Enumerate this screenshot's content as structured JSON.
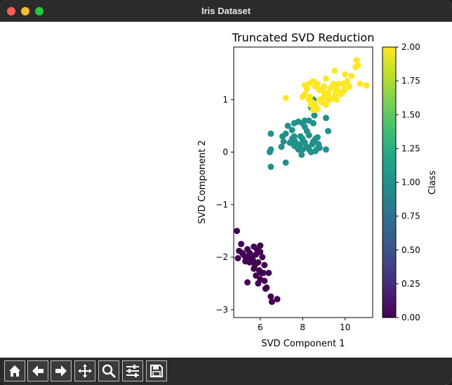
{
  "window": {
    "title": "Iris Dataset"
  },
  "toolbar": {
    "buttons": [
      {
        "name": "home-button",
        "icon": "home-icon"
      },
      {
        "name": "back-button",
        "icon": "arrow-left-icon"
      },
      {
        "name": "forward-button",
        "icon": "arrow-right-icon"
      },
      {
        "name": "pan-button",
        "icon": "move-icon"
      },
      {
        "name": "zoom-button",
        "icon": "magnifier-icon"
      },
      {
        "name": "configure-subplots-button",
        "icon": "sliders-icon"
      },
      {
        "name": "save-button",
        "icon": "save-icon"
      }
    ]
  },
  "chart_data": {
    "type": "scatter",
    "title": "Truncated SVD Reduction",
    "xlabel": "SVD Component 1",
    "ylabel": "SVD Component 2",
    "xlim": [
      4.75,
      11.3
    ],
    "ylim": [
      -3.15,
      2.0
    ],
    "xticks": [
      6,
      8,
      10
    ],
    "yticks": [
      -3,
      -2,
      -1,
      0,
      1
    ],
    "colorbar": {
      "label": "Class",
      "range": [
        0.0,
        2.0
      ],
      "ticks": [
        "0.00",
        "0.25",
        "0.50",
        "0.75",
        "1.00",
        "1.25",
        "1.50",
        "1.75",
        "2.00"
      ],
      "colormap": [
        "#440154",
        "#482475",
        "#414487",
        "#355f8d",
        "#2a788e",
        "#21918c",
        "#22a884",
        "#44bf70",
        "#7ad151",
        "#bddf26",
        "#fde725"
      ]
    },
    "series": [
      {
        "class": 0,
        "color": "#440154",
        "points": [
          [
            4.9,
            -1.5
          ],
          [
            5.1,
            -1.75
          ],
          [
            5.0,
            -1.88
          ],
          [
            5.2,
            -1.95
          ],
          [
            4.95,
            -2.02
          ],
          [
            5.4,
            -1.85
          ],
          [
            5.3,
            -2.0
          ],
          [
            5.5,
            -1.92
          ],
          [
            5.6,
            -2.05
          ],
          [
            5.7,
            -1.8
          ],
          [
            5.8,
            -1.95
          ],
          [
            5.9,
            -2.1
          ],
          [
            6.0,
            -1.9
          ],
          [
            5.75,
            -2.15
          ],
          [
            5.65,
            -2.05
          ],
          [
            5.5,
            -2.1
          ],
          [
            6.1,
            -2.0
          ],
          [
            6.2,
            -2.15
          ],
          [
            5.85,
            -1.85
          ],
          [
            6.0,
            -1.78
          ],
          [
            5.45,
            -2.0
          ],
          [
            5.95,
            -2.25
          ],
          [
            6.05,
            -2.3
          ],
          [
            5.8,
            -2.35
          ],
          [
            6.15,
            -2.3
          ],
          [
            5.7,
            -2.22
          ],
          [
            6.0,
            -2.42
          ],
          [
            6.2,
            -2.45
          ],
          [
            6.4,
            -2.3
          ],
          [
            5.9,
            -2.5
          ],
          [
            5.4,
            -2.48
          ],
          [
            6.3,
            -2.58
          ],
          [
            6.25,
            -2.6
          ],
          [
            6.5,
            -2.75
          ],
          [
            6.55,
            -2.85
          ],
          [
            6.8,
            -2.8
          ],
          [
            5.6,
            -2.02
          ],
          [
            5.3,
            -2.08
          ],
          [
            5.55,
            -1.96
          ],
          [
            5.15,
            -1.92
          ]
        ]
      },
      {
        "class": 1,
        "color": "#21918c",
        "points": [
          [
            6.5,
            0.35
          ],
          [
            6.45,
            0.0
          ],
          [
            6.5,
            0.05
          ],
          [
            6.5,
            -0.28
          ],
          [
            7.2,
            -0.2
          ],
          [
            7.0,
            0.1
          ],
          [
            7.1,
            0.2
          ],
          [
            7.05,
            0.3
          ],
          [
            7.2,
            0.35
          ],
          [
            7.3,
            0.5
          ],
          [
            7.5,
            0.42
          ],
          [
            7.6,
            0.3
          ],
          [
            7.65,
            0.2
          ],
          [
            7.4,
            0.18
          ],
          [
            7.7,
            0.1
          ],
          [
            7.8,
            0.05
          ],
          [
            7.9,
            0.15
          ],
          [
            7.6,
            0.55
          ],
          [
            7.8,
            0.58
          ],
          [
            8.0,
            0.55
          ],
          [
            8.1,
            0.48
          ],
          [
            8.2,
            0.4
          ],
          [
            8.3,
            0.32
          ],
          [
            8.0,
            0.25
          ],
          [
            8.1,
            0.18
          ],
          [
            8.2,
            0.1
          ],
          [
            8.3,
            0.05
          ],
          [
            8.4,
            0.0
          ],
          [
            8.45,
            0.15
          ],
          [
            8.5,
            0.2
          ],
          [
            8.6,
            0.25
          ],
          [
            8.7,
            0.28
          ],
          [
            8.75,
            0.15
          ],
          [
            8.8,
            0.08
          ],
          [
            8.65,
            0.05
          ],
          [
            8.5,
            0.55
          ],
          [
            8.55,
            0.7
          ],
          [
            8.4,
            0.85
          ],
          [
            8.5,
            1.0
          ],
          [
            9.1,
            0.65
          ],
          [
            9.2,
            0.4
          ],
          [
            9.1,
            0.05
          ],
          [
            7.9,
            0.3
          ],
          [
            8.0,
            0.05
          ],
          [
            7.95,
            -0.05
          ],
          [
            8.3,
            0.6
          ],
          [
            8.1,
            0.6
          ],
          [
            7.5,
            0.25
          ],
          [
            7.6,
            0.12
          ],
          [
            8.6,
            0.02
          ]
        ]
      },
      {
        "class": 2,
        "color": "#fde725",
        "points": [
          [
            7.2,
            1.03
          ],
          [
            8.1,
            1.27
          ],
          [
            8.1,
            1.1
          ],
          [
            8.2,
            1.2
          ],
          [
            8.0,
            1.05
          ],
          [
            8.3,
            1.0
          ],
          [
            8.4,
            0.9
          ],
          [
            8.5,
            0.8
          ],
          [
            8.45,
            0.95
          ],
          [
            8.6,
            0.9
          ],
          [
            8.7,
            0.82
          ],
          [
            8.8,
            1.0
          ],
          [
            9.0,
            1.05
          ],
          [
            9.1,
            0.9
          ],
          [
            9.2,
            1.1
          ],
          [
            9.3,
            1.2
          ],
          [
            9.4,
            1.25
          ],
          [
            9.5,
            1.05
          ],
          [
            9.6,
            1.0
          ],
          [
            9.3,
            1.0
          ],
          [
            9.1,
            1.4
          ],
          [
            9.5,
            1.55
          ],
          [
            9.45,
            1.3
          ],
          [
            9.6,
            1.2
          ],
          [
            9.7,
            1.15
          ],
          [
            9.8,
            1.1
          ],
          [
            9.9,
            1.15
          ],
          [
            10.0,
            1.2
          ],
          [
            10.1,
            1.35
          ],
          [
            9.9,
            1.3
          ],
          [
            10.0,
            1.48
          ],
          [
            10.3,
            1.45
          ],
          [
            10.5,
            1.62
          ],
          [
            10.55,
            1.75
          ],
          [
            10.6,
            1.65
          ],
          [
            10.7,
            1.3
          ],
          [
            11.0,
            1.27
          ],
          [
            8.6,
            1.25
          ],
          [
            8.8,
            1.18
          ],
          [
            9.0,
            1.25
          ],
          [
            8.3,
            1.3
          ],
          [
            8.5,
            1.35
          ],
          [
            8.35,
            1.05
          ],
          [
            8.9,
            0.95
          ],
          [
            9.2,
            1.0
          ],
          [
            9.0,
            1.15
          ],
          [
            9.7,
            1.3
          ],
          [
            10.2,
            1.25
          ],
          [
            8.7,
            1.3
          ],
          [
            9.55,
            1.12
          ]
        ]
      }
    ]
  }
}
